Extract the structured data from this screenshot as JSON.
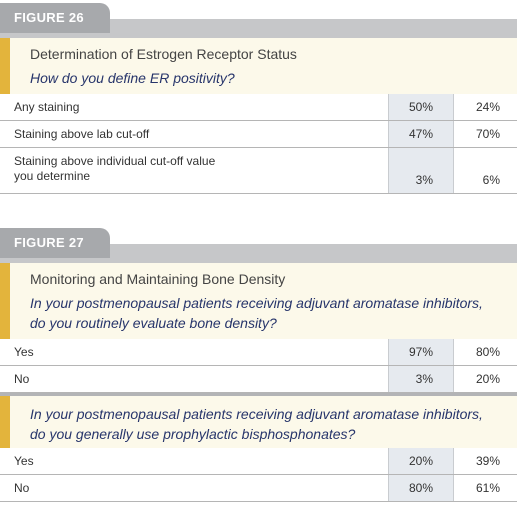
{
  "figures": [
    {
      "label": "FIGURE 26",
      "title": "Determination of Estrogen Receptor Status",
      "sections": [
        {
          "question": "How do you define ER positivity?",
          "rows": [
            [
              "Any staining",
              "50%",
              "24%"
            ],
            [
              "Staining above lab cut-off",
              "47%",
              "70%"
            ],
            [
              "Staining above individual cut-off value\nyou determine",
              "3%",
              "6%"
            ]
          ]
        }
      ]
    },
    {
      "label": "FIGURE 27",
      "title": "Monitoring and Maintaining Bone Density",
      "sections": [
        {
          "question": "In your postmenopausal patients receiving adjuvant aromatase inhibitors,\ndo you routinely evaluate bone density?",
          "rows": [
            [
              "Yes",
              "97%",
              "80%"
            ],
            [
              "No",
              "3%",
              "20%"
            ]
          ]
        },
        {
          "question": "In your postmenopausal patients receiving adjuvant aromatase inhibitors,\ndo you generally use prophylactic bisphosphonates?",
          "rows": [
            [
              "Yes",
              "20%",
              "39%"
            ],
            [
              "No",
              "80%",
              "61%"
            ]
          ]
        }
      ]
    }
  ]
}
